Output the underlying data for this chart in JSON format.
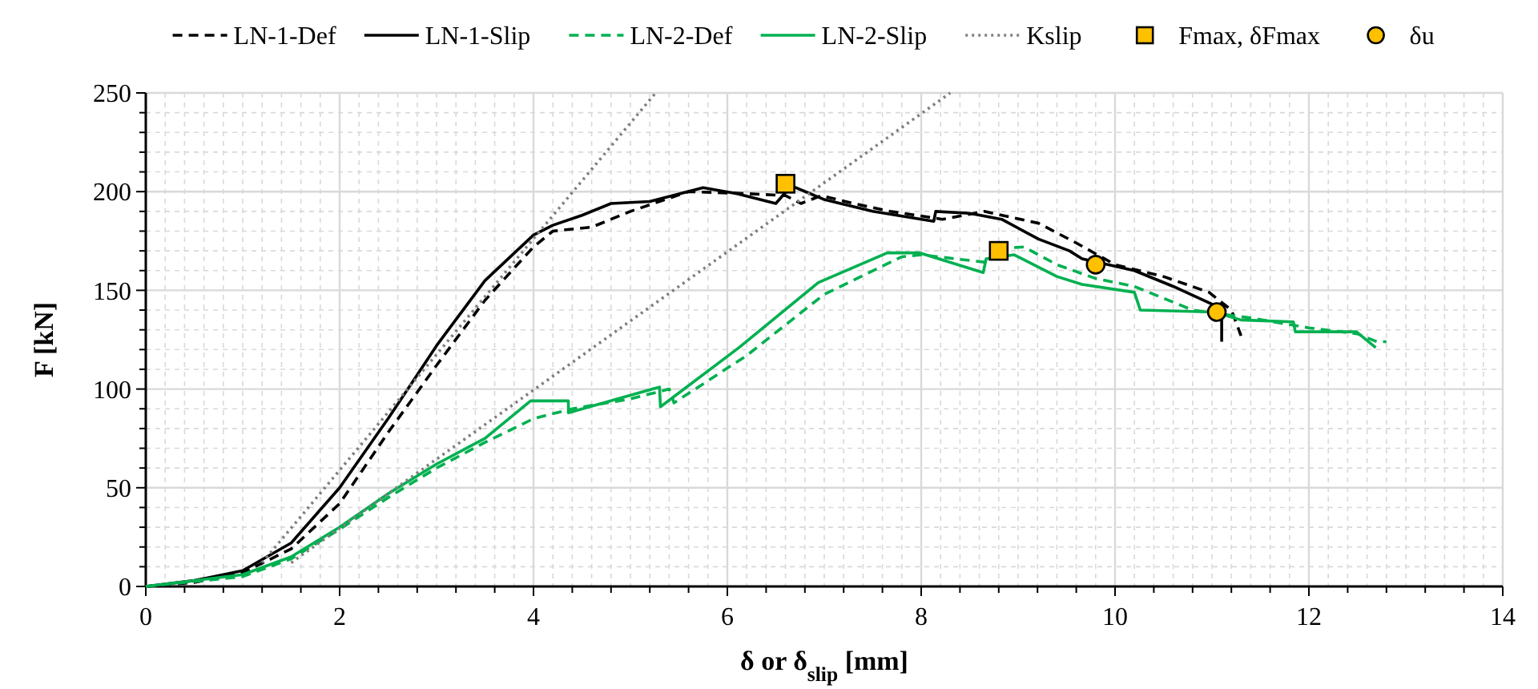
{
  "chart_data": {
    "type": "line",
    "xlabel": "δ or δ$_{slip}$ [mm]",
    "ylabel": "F [kN]",
    "xlim": [
      0,
      14
    ],
    "xticks": [
      0,
      2,
      4,
      6,
      8,
      10,
      12,
      14
    ],
    "ylim": [
      0,
      250
    ],
    "yticks": [
      0,
      50,
      100,
      150,
      200,
      250
    ],
    "grid": true,
    "legend": "top",
    "series": [
      {
        "name": "LN-1-Def",
        "color": "#000000",
        "line_style": "dashed",
        "x": [
          0,
          0.5,
          1,
          1.5,
          2,
          2.5,
          3,
          3.5,
          4,
          4.2,
          4.6,
          5,
          5.6,
          6.2,
          6.6,
          6.76,
          6.97,
          7.3,
          7.68,
          8.22,
          8.65,
          9.21,
          9.6,
          10,
          10.5,
          10.97,
          11.2,
          11.3
        ],
        "values": [
          0,
          2,
          7,
          19,
          42,
          78,
          112,
          145,
          172,
          180,
          182,
          190,
          200,
          199,
          198,
          194,
          198,
          194,
          190,
          186,
          190,
          184,
          174,
          163,
          157,
          149,
          140,
          127
        ]
      },
      {
        "name": "LN-1-Slip",
        "color": "#000000",
        "line_style": "solid",
        "x": [
          0,
          0.5,
          1,
          1.5,
          2,
          2.5,
          3,
          3.5,
          4,
          4.2,
          4.5,
          4.8,
          5.2,
          5.75,
          6.1,
          6.5,
          6.66,
          7,
          7.5,
          8.13,
          8.15,
          8.5,
          8.83,
          9.21,
          9.53,
          9.66,
          10.2,
          10.6,
          11.0,
          11.1,
          11.1
        ],
        "values": [
          0,
          3,
          8,
          22,
          50,
          85,
          122,
          155,
          178,
          183,
          188,
          194,
          195,
          202,
          199,
          194,
          203,
          196,
          190,
          185,
          190,
          189,
          186,
          176,
          170,
          166,
          160,
          152,
          143,
          136,
          124
        ]
      },
      {
        "name": "LN-2-Def",
        "color": "#00b050",
        "line_style": "dashed",
        "x": [
          0,
          1,
          1.5,
          2,
          2.5,
          3,
          3.5,
          4,
          4.4,
          5,
          5.4,
          5.45,
          6.2,
          7,
          7.8,
          8.0,
          8.7,
          8.75,
          9.06,
          9.4,
          9.8,
          10.2,
          10.8,
          11.4,
          12,
          12.5,
          12.7,
          12.8
        ],
        "values": [
          0,
          5,
          14,
          29,
          45,
          60,
          73,
          85,
          90,
          95,
          100,
          93,
          117,
          148,
          167,
          168,
          164,
          171,
          172,
          163,
          156,
          152,
          140,
          136,
          131,
          128,
          124,
          124
        ]
      },
      {
        "name": "LN-2-Slip",
        "color": "#00b050",
        "line_style": "solid",
        "x": [
          0,
          1,
          1.5,
          2,
          2.5,
          3,
          3.5,
          3.97,
          4.36,
          4.36,
          5.23,
          5.3,
          5.31,
          6.12,
          6.94,
          7.65,
          7.98,
          8.64,
          8.67,
          8.96,
          9.4,
          9.66,
          10.2,
          10.26,
          11.02,
          11.3,
          11.84,
          11.86,
          12.49,
          12.69
        ],
        "values": [
          0,
          6,
          15,
          30,
          47,
          62,
          75,
          94,
          94,
          88,
          100,
          101,
          91,
          121,
          154,
          169,
          169,
          159,
          166,
          168,
          157,
          153,
          149,
          140,
          139,
          135,
          134,
          129,
          129,
          121
        ]
      },
      {
        "name": "Kslip",
        "color": "#808080",
        "line_style": "dotted",
        "x": [
          1.2,
          5.26
        ],
        "values": [
          12,
          250
        ]
      },
      {
        "color": "#808080",
        "line_style": "dotted",
        "x": [
          1.5,
          8.3
        ],
        "values": [
          12,
          250
        ]
      },
      {
        "name": "Fmax, δFmax",
        "type": "scatter",
        "color": "#ffc000",
        "marker": "square",
        "x": [
          6.6,
          8.8
        ],
        "values": [
          204,
          170
        ]
      },
      {
        "name": "δu",
        "type": "scatter",
        "color": "#ffc000",
        "marker": "circle",
        "x": [
          9.8,
          11.05
        ],
        "values": [
          163,
          139
        ]
      }
    ]
  }
}
